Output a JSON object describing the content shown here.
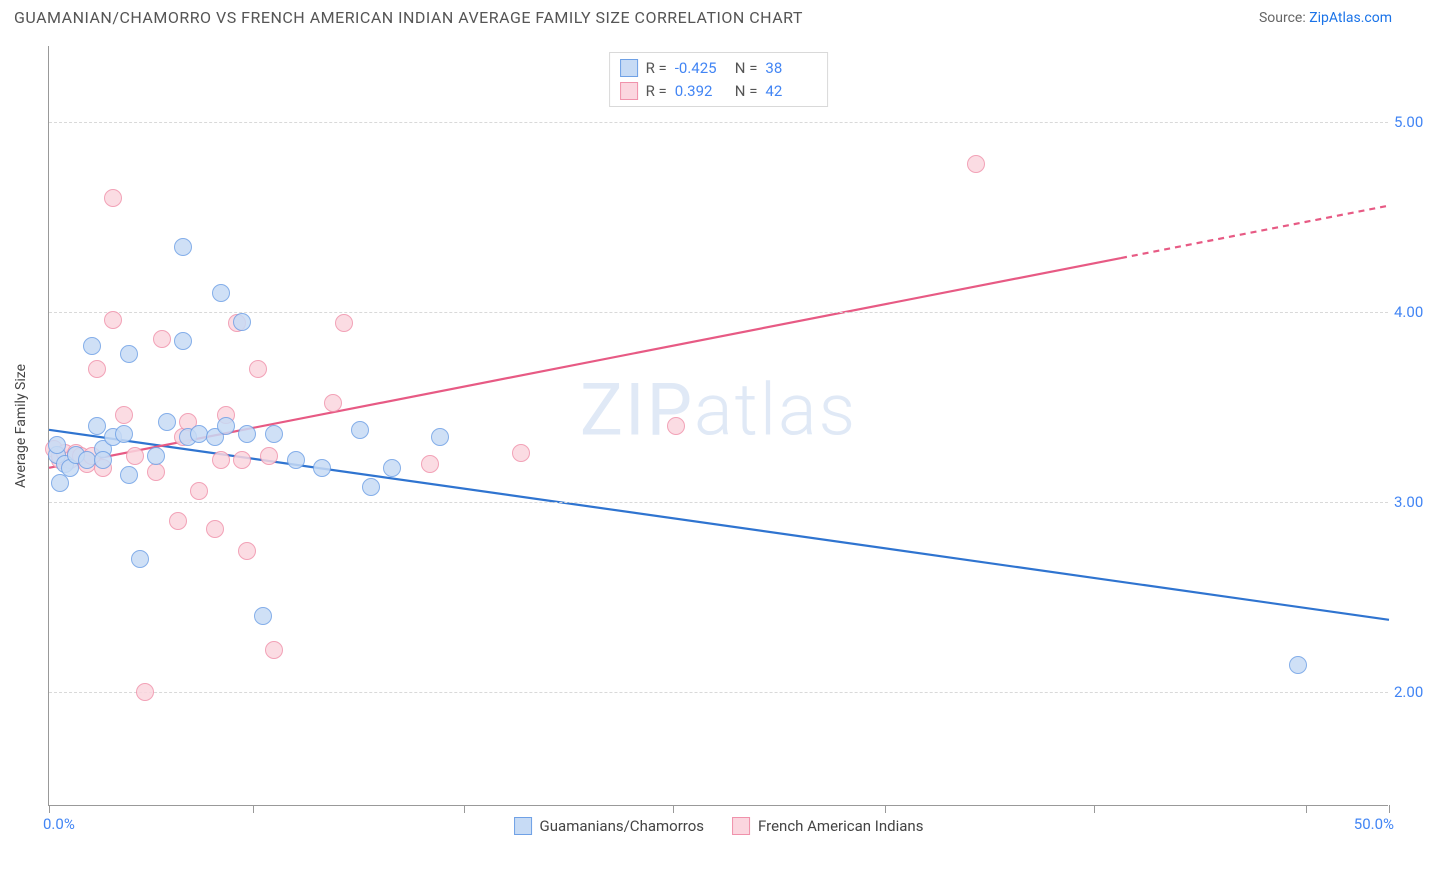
{
  "title": "GUAMANIAN/CHAMORRO VS FRENCH AMERICAN INDIAN AVERAGE FAMILY SIZE CORRELATION CHART",
  "source_label": "Source: ",
  "source_name": "ZipAtlas.com",
  "watermark": "ZIPatlas",
  "chart": {
    "type": "scatter",
    "xlim": [
      0,
      50
    ],
    "ylim": [
      1.4,
      5.4
    ],
    "x_label_min": "0.0%",
    "x_label_max": "50.0%",
    "y_axis_label": "Average Family Size",
    "y_ticks": [
      2.0,
      3.0,
      4.0,
      5.0
    ],
    "x_tick_positions_pct": [
      0,
      7.6,
      15.5,
      23.3,
      31.2,
      39,
      46.9,
      50
    ],
    "grid_color": "#d9d9d9",
    "background_color": "#ffffff",
    "axis_color": "#999999",
    "tick_label_color": "#4285f4",
    "marker_radius": 9,
    "marker_border_width": 1.2,
    "trend_line_width": 2.2
  },
  "series": {
    "blue": {
      "name": "Guamanians/Chamorros",
      "fill": "#c7dbf5",
      "stroke": "#6fa1e6",
      "line_color": "#2f74d0",
      "R": "-0.425",
      "N": "38",
      "trend": {
        "x1": 0,
        "y1": 3.38,
        "x2": 50,
        "y2": 2.38,
        "dash_from_x": null
      },
      "points": [
        [
          0.3,
          3.25
        ],
        [
          0.3,
          3.3
        ],
        [
          0.4,
          3.1
        ],
        [
          0.6,
          3.2
        ],
        [
          0.8,
          3.18
        ],
        [
          1.0,
          3.25
        ],
        [
          1.4,
          3.22
        ],
        [
          1.6,
          3.82
        ],
        [
          1.8,
          3.4
        ],
        [
          2.0,
          3.28
        ],
        [
          2.0,
          3.22
        ],
        [
          2.4,
          3.34
        ],
        [
          2.8,
          3.36
        ],
        [
          3.0,
          3.14
        ],
        [
          3.0,
          3.78
        ],
        [
          3.4,
          2.7
        ],
        [
          4.0,
          3.24
        ],
        [
          4.4,
          3.42
        ],
        [
          5.0,
          4.34
        ],
        [
          5.0,
          3.85
        ],
        [
          5.2,
          3.34
        ],
        [
          5.6,
          3.36
        ],
        [
          6.2,
          3.34
        ],
        [
          6.4,
          4.1
        ],
        [
          6.6,
          3.4
        ],
        [
          7.2,
          3.95
        ],
        [
          7.4,
          3.36
        ],
        [
          8.0,
          2.4
        ],
        [
          8.4,
          3.36
        ],
        [
          9.2,
          3.22
        ],
        [
          10.2,
          3.18
        ],
        [
          11.6,
          3.38
        ],
        [
          12.0,
          3.08
        ],
        [
          12.8,
          3.18
        ],
        [
          14.6,
          3.34
        ],
        [
          46.6,
          2.14
        ]
      ]
    },
    "pink": {
      "name": "French American Indians",
      "fill": "#fbd6df",
      "stroke": "#f092ab",
      "line_color": "#e75a84",
      "R": "0.392",
      "N": "42",
      "trend": {
        "x1": 0,
        "y1": 3.18,
        "x2": 50,
        "y2": 4.56,
        "dash_from_x": 40
      },
      "points": [
        [
          0.2,
          3.28
        ],
        [
          0.4,
          3.22
        ],
        [
          0.4,
          3.24
        ],
        [
          0.6,
          3.26
        ],
        [
          0.8,
          3.22
        ],
        [
          1.0,
          3.26
        ],
        [
          1.2,
          3.24
        ],
        [
          1.4,
          3.2
        ],
        [
          1.6,
          3.24
        ],
        [
          1.8,
          3.7
        ],
        [
          2.0,
          3.18
        ],
        [
          2.4,
          3.96
        ],
        [
          2.8,
          3.46
        ],
        [
          2.4,
          4.6
        ],
        [
          3.2,
          3.24
        ],
        [
          3.6,
          2.0
        ],
        [
          4.0,
          3.16
        ],
        [
          4.2,
          3.86
        ],
        [
          5.0,
          3.34
        ],
        [
          5.2,
          3.42
        ],
        [
          4.8,
          2.9
        ],
        [
          5.6,
          3.06
        ],
        [
          6.2,
          2.86
        ],
        [
          6.4,
          3.22
        ],
        [
          6.6,
          3.46
        ],
        [
          7.0,
          3.94
        ],
        [
          7.2,
          3.22
        ],
        [
          7.4,
          2.74
        ],
        [
          7.8,
          3.7
        ],
        [
          8.4,
          2.22
        ],
        [
          8.2,
          3.24
        ],
        [
          10.6,
          3.52
        ],
        [
          11.0,
          3.94
        ],
        [
          14.2,
          3.2
        ],
        [
          17.6,
          3.26
        ],
        [
          23.4,
          3.4
        ],
        [
          34.6,
          4.78
        ]
      ]
    }
  },
  "legend_labels": {
    "R": "R =",
    "N": "N ="
  }
}
